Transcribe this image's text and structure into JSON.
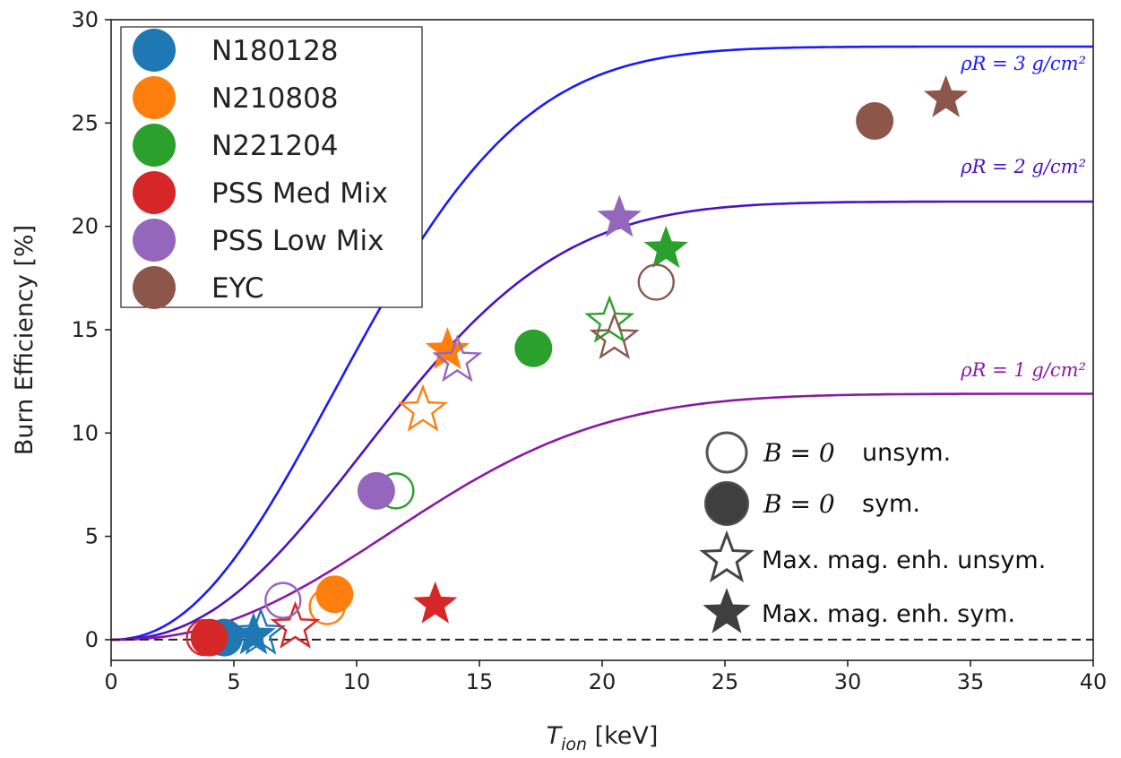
{
  "chart_data": {
    "type": "scatter",
    "xlabel_main": "T",
    "xlabel_sub": "ion",
    "xlabel_unit": " [keV]",
    "ylabel": "Burn Efficiency [%]",
    "xlim": [
      0,
      40
    ],
    "ylim": [
      -1,
      30
    ],
    "xticks": [
      0,
      5,
      10,
      15,
      20,
      25,
      30,
      35,
      40
    ],
    "yticks": [
      0,
      5,
      10,
      15,
      20,
      25,
      30
    ],
    "x_tick_labels": [
      "0",
      "5",
      "10",
      "15",
      "20",
      "25",
      "30",
      "35",
      "40"
    ],
    "y_tick_labels": [
      "0",
      "5",
      "10",
      "15",
      "20",
      "25",
      "30"
    ],
    "curves": [
      {
        "name": "rhoR3",
        "label": "ρR = 3 g/cm²",
        "color": "#1a1aff",
        "asymptote": 28.7
      },
      {
        "name": "rhoR2",
        "label": "ρR = 2 g/cm²",
        "color": "#4b12c4",
        "asymptote": 21.2
      },
      {
        "name": "rhoR1",
        "label": "ρR = 1 g/cm²",
        "color": "#8a1aa3",
        "asymptote": 11.9
      }
    ],
    "zero_line": 0,
    "series": [
      {
        "name": "N180128",
        "color": "#1f77b4",
        "points": [
          {
            "x": 4.0,
            "y": 0.1,
            "marker": "circle",
            "filled": false
          },
          {
            "x": 4.6,
            "y": 0.1,
            "marker": "circle",
            "filled": true
          },
          {
            "x": 6.1,
            "y": 0.3,
            "marker": "star",
            "filled": false
          },
          {
            "x": 5.8,
            "y": 0.2,
            "marker": "star",
            "filled": true
          }
        ]
      },
      {
        "name": "N210808",
        "color": "#ff7f0e",
        "points": [
          {
            "x": 8.8,
            "y": 1.6,
            "marker": "circle",
            "filled": false
          },
          {
            "x": 9.1,
            "y": 2.2,
            "marker": "circle",
            "filled": true
          },
          {
            "x": 12.7,
            "y": 11.1,
            "marker": "star",
            "filled": false
          },
          {
            "x": 13.7,
            "y": 14.0,
            "marker": "star",
            "filled": true
          }
        ]
      },
      {
        "name": "N221204",
        "color": "#2ca02c",
        "points": [
          {
            "x": 11.6,
            "y": 7.2,
            "marker": "circle",
            "filled": false
          },
          {
            "x": 17.2,
            "y": 14.1,
            "marker": "circle",
            "filled": true
          },
          {
            "x": 20.3,
            "y": 15.4,
            "marker": "star",
            "filled": false
          },
          {
            "x": 22.6,
            "y": 18.9,
            "marker": "star",
            "filled": true
          }
        ]
      },
      {
        "name": "PSS Med Mix",
        "color": "#d62728",
        "points": [
          {
            "x": 3.8,
            "y": 0.1,
            "marker": "circle",
            "filled": false
          },
          {
            "x": 4.0,
            "y": 0.1,
            "marker": "circle",
            "filled": true
          },
          {
            "x": 7.5,
            "y": 0.6,
            "marker": "star",
            "filled": false
          },
          {
            "x": 13.2,
            "y": 1.7,
            "marker": "star",
            "filled": true
          }
        ]
      },
      {
        "name": "PSS Low Mix",
        "color": "#9467bd",
        "points": [
          {
            "x": 7.0,
            "y": 1.9,
            "marker": "circle",
            "filled": false
          },
          {
            "x": 10.8,
            "y": 7.2,
            "marker": "circle",
            "filled": true
          },
          {
            "x": 14.1,
            "y": 13.5,
            "marker": "star",
            "filled": false
          },
          {
            "x": 20.7,
            "y": 20.4,
            "marker": "star",
            "filled": true
          }
        ]
      },
      {
        "name": "EYC",
        "color": "#8c564b",
        "points": [
          {
            "x": 22.2,
            "y": 17.3,
            "marker": "circle",
            "filled": false
          },
          {
            "x": 31.1,
            "y": 25.1,
            "marker": "circle",
            "filled": true
          },
          {
            "x": 20.5,
            "y": 14.6,
            "marker": "star",
            "filled": false
          },
          {
            "x": 34.0,
            "y": 26.2,
            "marker": "star",
            "filled": true
          }
        ]
      }
    ],
    "marker_key": [
      {
        "marker": "circle",
        "filled": false,
        "math": "B = 0",
        "label": "unsym."
      },
      {
        "marker": "circle",
        "filled": true,
        "math": "B = 0",
        "label": "sym."
      },
      {
        "marker": "star",
        "filled": false,
        "math": "",
        "label": "Max. mag. enh. unsym."
      },
      {
        "marker": "star",
        "filled": true,
        "math": "",
        "label": "Max. mag. enh. sym."
      }
    ],
    "legend_placement": "upper-left",
    "grid": false
  }
}
